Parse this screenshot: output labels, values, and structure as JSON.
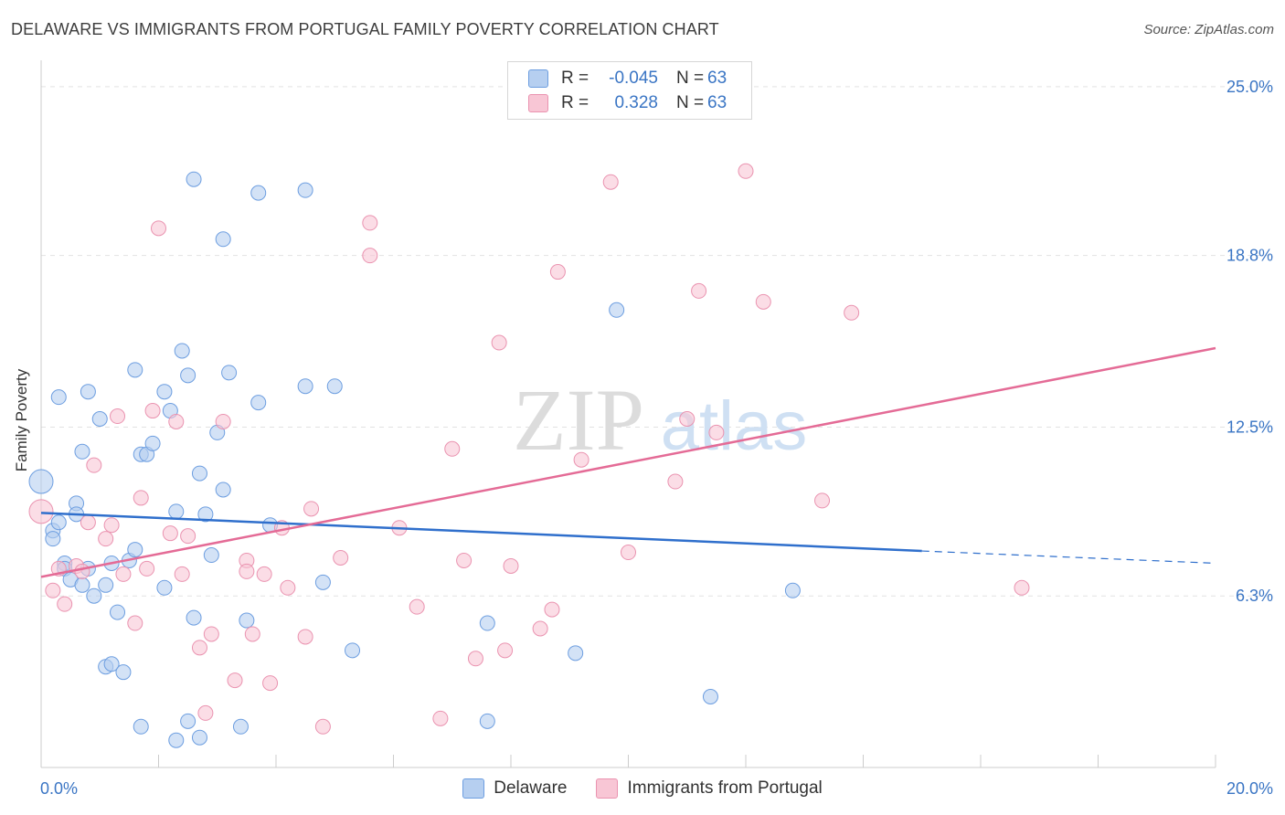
{
  "title": "DELAWARE VS IMMIGRANTS FROM PORTUGAL FAMILY POVERTY CORRELATION CHART",
  "source": "Source: ZipAtlas.com",
  "watermark": {
    "zip": "ZIP",
    "atlas": "atlas"
  },
  "legend_top": {
    "rows": [
      {
        "r_label": "R =",
        "r_value": "-0.045",
        "n_label": "N =",
        "n_value": "63"
      },
      {
        "r_label": "R =",
        "r_value": "0.328",
        "n_label": "N =",
        "n_value": "63"
      }
    ]
  },
  "colors": {
    "delaware_fill": "#b6cff0",
    "delaware_stroke": "#6d9ee0",
    "delaware_line": "#2f6fcc",
    "portugal_fill": "#f8c6d5",
    "portugal_stroke": "#ea93b0",
    "portugal_line": "#e46b96",
    "tick_label": "#3a75c4",
    "grid": "#e2e2e2"
  },
  "chart_data": {
    "type": "scatter",
    "title": "DELAWARE VS IMMIGRANTS FROM PORTUGAL FAMILY POVERTY CORRELATION CHART",
    "xlabel": "",
    "ylabel": "Family Poverty",
    "xlim": [
      0,
      20
    ],
    "ylim": [
      0,
      25.6
    ],
    "x_tick_labels": [
      "0.0%",
      "20.0%"
    ],
    "y_ticks": [
      6.3,
      12.5,
      18.8,
      25.0
    ],
    "y_tick_labels": [
      "6.3%",
      "12.5%",
      "18.8%",
      "25.0%"
    ],
    "grid": "horizontal dashed",
    "legend_placement": "bottom-center",
    "series": [
      {
        "name": "Delaware",
        "r": -0.045,
        "n": 63,
        "trend": {
          "x0": 0,
          "y0": 9.35,
          "x1": 15,
          "y1": 7.95,
          "dashed_to": 20,
          "dashed_y": 7.5
        },
        "points": [
          [
            0.0,
            10.5
          ],
          [
            0.2,
            8.7
          ],
          [
            0.2,
            8.4
          ],
          [
            0.3,
            13.6
          ],
          [
            0.3,
            9.0
          ],
          [
            0.4,
            7.5
          ],
          [
            0.4,
            7.3
          ],
          [
            0.5,
            6.9
          ],
          [
            0.6,
            9.7
          ],
          [
            0.6,
            9.3
          ],
          [
            0.7,
            6.7
          ],
          [
            0.7,
            11.6
          ],
          [
            0.8,
            7.3
          ],
          [
            0.8,
            13.8
          ],
          [
            0.9,
            6.3
          ],
          [
            1.0,
            12.8
          ],
          [
            1.1,
            6.7
          ],
          [
            1.1,
            3.7
          ],
          [
            1.2,
            3.8
          ],
          [
            1.2,
            7.5
          ],
          [
            1.3,
            5.7
          ],
          [
            1.4,
            3.5
          ],
          [
            1.5,
            7.6
          ],
          [
            1.6,
            8.0
          ],
          [
            1.6,
            14.6
          ],
          [
            1.7,
            1.5
          ],
          [
            1.7,
            11.5
          ],
          [
            1.8,
            11.5
          ],
          [
            1.9,
            11.9
          ],
          [
            2.1,
            6.6
          ],
          [
            2.1,
            13.8
          ],
          [
            2.2,
            13.1
          ],
          [
            2.3,
            1.0
          ],
          [
            2.3,
            9.4
          ],
          [
            2.4,
            15.3
          ],
          [
            2.5,
            14.4
          ],
          [
            2.5,
            1.7
          ],
          [
            2.6,
            5.5
          ],
          [
            2.6,
            21.6
          ],
          [
            2.7,
            1.1
          ],
          [
            2.7,
            10.8
          ],
          [
            2.8,
            9.3
          ],
          [
            2.9,
            7.8
          ],
          [
            3.0,
            12.3
          ],
          [
            3.1,
            10.2
          ],
          [
            3.1,
            19.4
          ],
          [
            3.2,
            14.5
          ],
          [
            3.4,
            1.5
          ],
          [
            3.5,
            5.4
          ],
          [
            3.7,
            13.4
          ],
          [
            3.7,
            21.1
          ],
          [
            3.9,
            8.9
          ],
          [
            4.5,
            14.0
          ],
          [
            4.5,
            21.2
          ],
          [
            4.8,
            6.8
          ],
          [
            5.0,
            14.0
          ],
          [
            5.3,
            4.3
          ],
          [
            7.6,
            5.3
          ],
          [
            7.6,
            1.7
          ],
          [
            9.1,
            4.2
          ],
          [
            9.8,
            16.8
          ],
          [
            11.4,
            2.6
          ],
          [
            12.8,
            6.5
          ]
        ]
      },
      {
        "name": "Immigrants from Portugal",
        "r": 0.328,
        "n": 63,
        "trend": {
          "x0": 0,
          "y0": 7.0,
          "x1": 20,
          "y1": 15.4
        },
        "points": [
          [
            0.0,
            9.4
          ],
          [
            0.2,
            6.5
          ],
          [
            0.3,
            7.3
          ],
          [
            0.4,
            6.0
          ],
          [
            0.6,
            7.4
          ],
          [
            0.7,
            7.2
          ],
          [
            0.8,
            9.0
          ],
          [
            0.9,
            11.1
          ],
          [
            1.1,
            8.4
          ],
          [
            1.2,
            8.9
          ],
          [
            1.3,
            12.9
          ],
          [
            1.4,
            7.1
          ],
          [
            1.6,
            5.3
          ],
          [
            1.7,
            9.9
          ],
          [
            1.8,
            7.3
          ],
          [
            1.9,
            13.1
          ],
          [
            2.0,
            19.8
          ],
          [
            2.2,
            8.6
          ],
          [
            2.3,
            12.7
          ],
          [
            2.4,
            7.1
          ],
          [
            2.5,
            8.5
          ],
          [
            2.7,
            4.4
          ],
          [
            2.8,
            2.0
          ],
          [
            2.9,
            4.9
          ],
          [
            3.1,
            12.7
          ],
          [
            3.3,
            3.2
          ],
          [
            3.5,
            7.6
          ],
          [
            3.5,
            7.2
          ],
          [
            3.6,
            4.9
          ],
          [
            3.8,
            7.1
          ],
          [
            3.9,
            3.1
          ],
          [
            4.1,
            8.8
          ],
          [
            4.2,
            6.6
          ],
          [
            4.5,
            4.8
          ],
          [
            4.6,
            9.5
          ],
          [
            4.8,
            1.5
          ],
          [
            5.1,
            7.7
          ],
          [
            5.6,
            20.0
          ],
          [
            5.6,
            18.8
          ],
          [
            6.1,
            8.8
          ],
          [
            6.4,
            5.9
          ],
          [
            6.8,
            1.8
          ],
          [
            7.0,
            11.7
          ],
          [
            7.2,
            7.6
          ],
          [
            7.4,
            4.0
          ],
          [
            7.8,
            15.6
          ],
          [
            7.9,
            4.3
          ],
          [
            8.0,
            7.4
          ],
          [
            8.5,
            5.1
          ],
          [
            8.7,
            5.8
          ],
          [
            8.8,
            18.2
          ],
          [
            9.2,
            11.3
          ],
          [
            9.7,
            21.5
          ],
          [
            10.0,
            7.9
          ],
          [
            10.8,
            10.5
          ],
          [
            11.0,
            12.8
          ],
          [
            11.2,
            17.5
          ],
          [
            11.5,
            12.3
          ],
          [
            12.0,
            21.9
          ],
          [
            12.3,
            17.1
          ],
          [
            13.3,
            9.8
          ],
          [
            13.8,
            16.7
          ],
          [
            16.7,
            6.6
          ]
        ]
      }
    ]
  },
  "bottom_legend": [
    {
      "label": "Delaware"
    },
    {
      "label": "Immigrants from Portugal"
    }
  ]
}
